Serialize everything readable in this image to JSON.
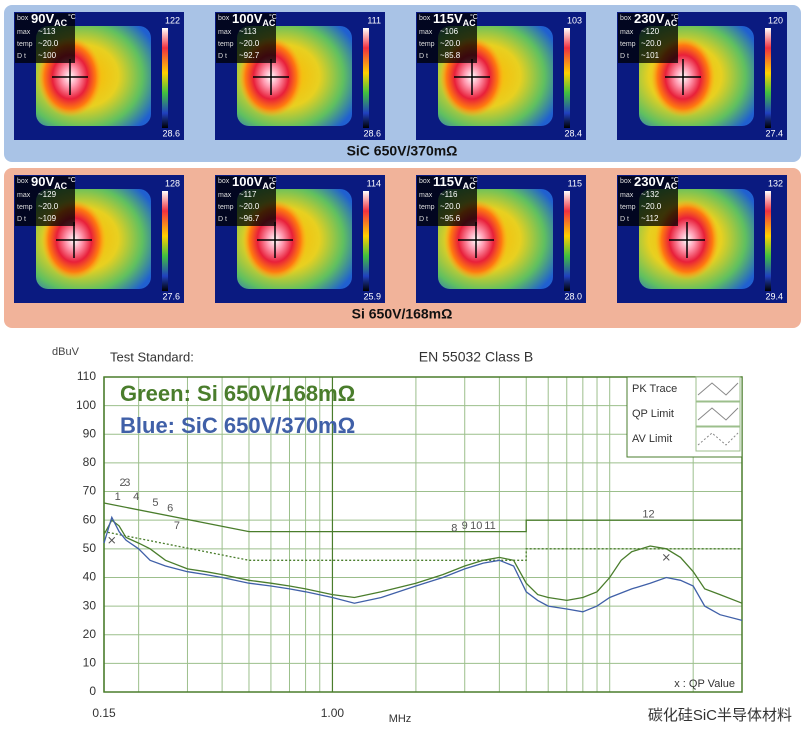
{
  "thermal_labels": {
    "box": "box",
    "max": "max",
    "temp": "temp",
    "dt": "D t",
    "unit": "°C",
    "ac": "AC"
  },
  "groups": [
    {
      "caption": "SiC 650V/370mΩ",
      "panels": [
        {
          "voltage": "90V",
          "max": "~113",
          "temp": "~20.0",
          "dt": "~100",
          "scale_max": "122",
          "scale_min": "28.6"
        },
        {
          "voltage": "100V",
          "max": "~113",
          "temp": "~20.0",
          "dt": "~92.7",
          "scale_max": "111",
          "scale_min": "28.6"
        },
        {
          "voltage": "115V",
          "max": "~106",
          "temp": "~20.0",
          "dt": "~85.8",
          "scale_max": "103",
          "scale_min": "28.4"
        },
        {
          "voltage": "230V",
          "max": "~120",
          "temp": "~20.0",
          "dt": "~101",
          "scale_max": "120",
          "scale_min": "27.4"
        }
      ]
    },
    {
      "caption": "Si 650V/168mΩ",
      "panels": [
        {
          "voltage": "90V",
          "max": "~129",
          "temp": "~20.0",
          "dt": "~109",
          "scale_max": "128",
          "scale_min": "27.6"
        },
        {
          "voltage": "100V",
          "max": "~117",
          "temp": "~20.0",
          "dt": "~96.7",
          "scale_max": "114",
          "scale_min": "25.9"
        },
        {
          "voltage": "115V",
          "max": "~116",
          "temp": "~20.0",
          "dt": "~95.6",
          "scale_max": "115",
          "scale_min": "28.0"
        },
        {
          "voltage": "230V",
          "max": "~132",
          "temp": "~20.0",
          "dt": "~112",
          "scale_max": "132",
          "scale_min": "29.4"
        }
      ]
    }
  ],
  "chart_data": {
    "type": "line",
    "y_label": "dBuV",
    "x_label": "MHz",
    "test_standard_label": "Test Standard:",
    "standard": "EN 55032 Class B",
    "log_x": true,
    "grid": true,
    "xlim": [
      0.15,
      30
    ],
    "xticks": [
      0.15,
      {
        "value": 1,
        "label": "1.00"
      }
    ],
    "xgrid": [
      0.2,
      0.3,
      0.4,
      0.5,
      0.6,
      0.7,
      0.8,
      0.9,
      2,
      3,
      4,
      5,
      6,
      7,
      8,
      9,
      10,
      20
    ],
    "ylim": [
      0,
      110
    ],
    "yticks": [
      0,
      10,
      20,
      30,
      40,
      50,
      60,
      70,
      80,
      90,
      100,
      110
    ],
    "series": [
      {
        "name": "Green: Si 650V/168mΩ",
        "color": "#4a7d2c",
        "x": [
          0.15,
          0.16,
          0.17,
          0.18,
          0.2,
          0.22,
          0.25,
          0.3,
          0.35,
          0.4,
          0.5,
          0.6,
          0.7,
          0.8,
          1,
          1.2,
          1.5,
          2,
          2.5,
          3,
          3.5,
          4,
          4.5,
          5,
          5.5,
          6,
          7,
          8,
          9,
          10,
          11,
          12,
          14,
          16,
          18,
          20,
          22,
          25,
          30
        ],
        "values": [
          55,
          60,
          58,
          54,
          52,
          50,
          46,
          43,
          42,
          41,
          39,
          38,
          37,
          36,
          34,
          33,
          35,
          38,
          41,
          44,
          46,
          47,
          46,
          38,
          34,
          33,
          32,
          33,
          35,
          40,
          46,
          49,
          51,
          50,
          47,
          42,
          36,
          34,
          31
        ]
      },
      {
        "name": "Blue: SiC 650V/370mΩ",
        "color": "#4060a8",
        "x": [
          0.15,
          0.16,
          0.17,
          0.18,
          0.2,
          0.22,
          0.25,
          0.3,
          0.35,
          0.4,
          0.5,
          0.6,
          0.7,
          0.8,
          1,
          1.2,
          1.5,
          2,
          2.5,
          3,
          3.5,
          4,
          4.5,
          5,
          5.5,
          6,
          7,
          8,
          9,
          10,
          12,
          14,
          16,
          18,
          20,
          22,
          25,
          30
        ],
        "values": [
          52,
          61,
          56,
          53,
          50,
          46,
          44,
          42,
          41,
          40,
          38,
          37,
          36,
          35,
          33,
          31,
          33,
          37,
          40,
          43,
          45,
          46,
          44,
          35,
          32,
          30,
          29,
          28,
          30,
          33,
          36,
          38,
          40,
          39,
          37,
          30,
          27,
          25
        ]
      }
    ],
    "limits": [
      {
        "name": "QP Limit",
        "color": "#4a7d2c",
        "x": [
          0.15,
          0.5,
          5,
          5,
          30
        ],
        "values": [
          66,
          56,
          56,
          60,
          60
        ]
      },
      {
        "name": "AV Limit",
        "color": "#4a7d2c",
        "x": [
          0.15,
          0.5,
          5,
          5,
          30
        ],
        "values": [
          56,
          46,
          46,
          50,
          50
        ]
      }
    ],
    "pk_trace_label": "PK Trace",
    "qp_values": {
      "label": "x :  QP Value",
      "x": [
        0.16,
        16
      ],
      "values": [
        53,
        47
      ]
    },
    "peaks": {
      "labels": [
        "1",
        "2",
        "3",
        "4",
        "5",
        "6",
        "7",
        "8",
        "9",
        "10",
        "11",
        "12"
      ],
      "x": [
        0.168,
        0.175,
        0.182,
        0.196,
        0.23,
        0.26,
        0.275,
        2.75,
        3.0,
        3.3,
        3.7,
        13.8
      ],
      "values": [
        68,
        73,
        73,
        68,
        66,
        64,
        58,
        57,
        58,
        58,
        58,
        62
      ]
    }
  },
  "watermark": "碳化硅SiC半导体材料"
}
